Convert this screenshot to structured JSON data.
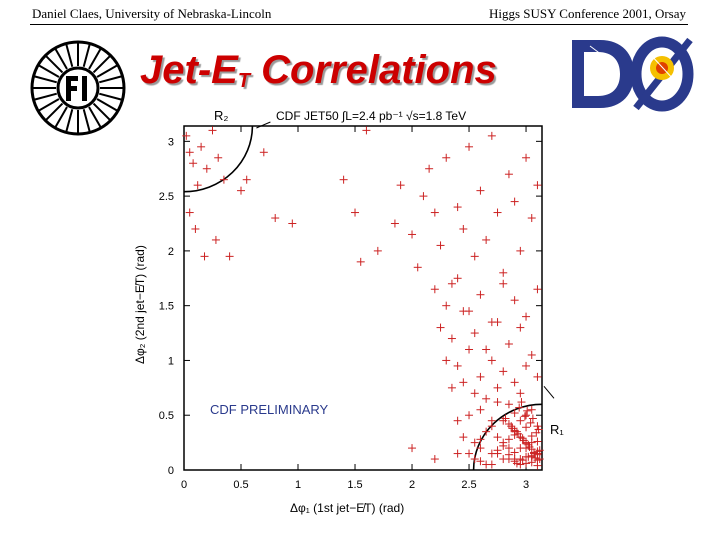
{
  "header": {
    "left": "Daniel Claes, University of Nebraska-Lincoln",
    "right": "Higgs SUSY Conference 2001, Orsay"
  },
  "title": {
    "main": "Jet-E",
    "sub": "T",
    "rest": " Correlations"
  },
  "logos": {
    "left_icon": "fermilab-logo",
    "right_icon": "d0-logo"
  },
  "colors": {
    "title": "#cc0000",
    "points": "#cc2222",
    "frame": "#000000"
  },
  "chart_data": {
    "type": "scatter",
    "title": "CDF JET50 ∫L=2.4 pb⁻¹ √s=1.8 TeV",
    "xlabel": "Δφ₁ (1st jet−E̸T) (rad)",
    "ylabel": "Δφ₂ (2nd jet−E̸T) (rad)",
    "xlim": [
      0,
      3.14
    ],
    "ylim": [
      0,
      3.14
    ],
    "xticks": [
      0,
      0.5,
      1,
      1.5,
      2,
      2.5,
      3
    ],
    "xtick_labels": [
      "0",
      "0.5",
      "1",
      "1.5",
      "2",
      "2.5",
      "3"
    ],
    "yticks": [
      0,
      0.5,
      1,
      1.5,
      2,
      2.5,
      3
    ],
    "ytick_labels": [
      "0",
      "0.5",
      "1",
      "1.5",
      "2",
      "2.5",
      "3"
    ],
    "annotation": "CDF PRELIMINARY",
    "region_labels": [
      "R₂",
      "R₁"
    ],
    "region_radius": 0.6,
    "grid": false,
    "legend": "none",
    "marker": "+",
    "series": [
      {
        "x": [
          0.02,
          0.05,
          0.08,
          0.12,
          0.15,
          0.2,
          0.25,
          0.3,
          0.35,
          0.05,
          0.1,
          0.18,
          0.28,
          0.4,
          0.5,
          0.55,
          0.7,
          0.8,
          0.95,
          1.4,
          1.5,
          1.55,
          1.6,
          1.7,
          1.85,
          1.9,
          2.0,
          2.05,
          2.1,
          2.15,
          2.2,
          2.25,
          2.3,
          2.35,
          2.4,
          2.45,
          2.5,
          2.55,
          2.6,
          2.65,
          2.7,
          2.75,
          2.8,
          2.85,
          2.9,
          2.95,
          3.0,
          3.05,
          3.1,
          2.2,
          2.3,
          2.4,
          2.5,
          2.6,
          2.7,
          2.8,
          2.9,
          3.0,
          3.1,
          2.25,
          2.35,
          2.45,
          2.55,
          2.65,
          2.75,
          2.85,
          2.95,
          3.05,
          2.3,
          2.4,
          2.5,
          2.6,
          2.7,
          2.8,
          2.9,
          3.0,
          3.1,
          2.35,
          2.45,
          2.55,
          2.65,
          2.75,
          2.85,
          2.95,
          3.05,
          2.4,
          2.5,
          2.6,
          2.7,
          2.8,
          2.9,
          3.0,
          3.1,
          2.45,
          2.55,
          2.65,
          2.75,
          2.85,
          2.95,
          3.05,
          2.5,
          2.6,
          2.7,
          2.8,
          2.9,
          3.0,
          3.1,
          2.55,
          2.65,
          2.75,
          2.85,
          2.95,
          3.05,
          2.6,
          2.7,
          2.8,
          2.9,
          3.0,
          3.1,
          2.75,
          2.85,
          2.95,
          3.05,
          2.8,
          2.9,
          3.0,
          3.1,
          2.85,
          2.95,
          3.05,
          2.9,
          3.0,
          3.1,
          2.92,
          2.97,
          3.02,
          3.07,
          3.12,
          2.88,
          2.93,
          2.98,
          3.03,
          3.08,
          2.85,
          2.9,
          2.95,
          3.0,
          3.05,
          3.1,
          2.82,
          2.87,
          2.92,
          2.97,
          3.02,
          3.07,
          3.12,
          2.9,
          2.95,
          3.0,
          3.05,
          3.1,
          2.94,
          2.99,
          3.04,
          3.09,
          2.96,
          3.01,
          3.06,
          3.11,
          2.7,
          2.75,
          2.6,
          2.4,
          2.2,
          2.0
        ],
        "y": [
          3.05,
          2.9,
          2.8,
          2.6,
          2.95,
          2.75,
          3.1,
          2.85,
          2.65,
          2.35,
          2.2,
          1.95,
          2.1,
          1.95,
          2.55,
          2.65,
          2.9,
          2.3,
          2.25,
          2.65,
          2.35,
          1.9,
          3.1,
          2.0,
          2.25,
          2.6,
          2.15,
          1.85,
          2.5,
          2.75,
          2.35,
          2.05,
          2.85,
          1.7,
          2.4,
          2.2,
          2.95,
          1.95,
          2.55,
          2.1,
          3.05,
          2.35,
          1.8,
          2.7,
          2.45,
          2.0,
          2.85,
          2.3,
          2.6,
          1.65,
          1.5,
          1.75,
          1.45,
          1.6,
          1.35,
          1.7,
          1.55,
          1.4,
          1.65,
          1.3,
          1.2,
          1.45,
          1.25,
          1.1,
          1.35,
          1.15,
          1.3,
          1.05,
          1.0,
          0.95,
          1.1,
          0.85,
          1.0,
          0.9,
          0.8,
          0.95,
          0.85,
          0.75,
          0.8,
          0.7,
          0.65,
          0.75,
          0.6,
          0.7,
          0.55,
          0.45,
          0.5,
          0.55,
          0.4,
          0.45,
          0.35,
          0.5,
          0.4,
          0.3,
          0.25,
          0.35,
          0.3,
          0.2,
          0.3,
          0.25,
          0.15,
          0.2,
          0.15,
          0.25,
          0.1,
          0.2,
          0.15,
          0.1,
          0.05,
          0.15,
          0.1,
          0.05,
          0.12,
          0.08,
          0.05,
          0.1,
          0.08,
          0.06,
          0.04,
          0.18,
          0.14,
          0.1,
          0.07,
          0.22,
          0.16,
          0.12,
          0.09,
          0.28,
          0.2,
          0.13,
          0.32,
          0.24,
          0.17,
          0.06,
          0.09,
          0.12,
          0.15,
          0.18,
          0.38,
          0.33,
          0.27,
          0.21,
          0.11,
          0.42,
          0.36,
          0.3,
          0.25,
          0.19,
          0.14,
          0.47,
          0.4,
          0.35,
          0.29,
          0.23,
          0.16,
          0.1,
          0.52,
          0.45,
          0.39,
          0.31,
          0.26,
          0.57,
          0.49,
          0.43,
          0.34,
          0.62,
          0.54,
          0.47,
          0.37,
          0.45,
          0.62,
          0.28,
          0.15,
          0.1,
          0.2
        ]
      }
    ]
  }
}
